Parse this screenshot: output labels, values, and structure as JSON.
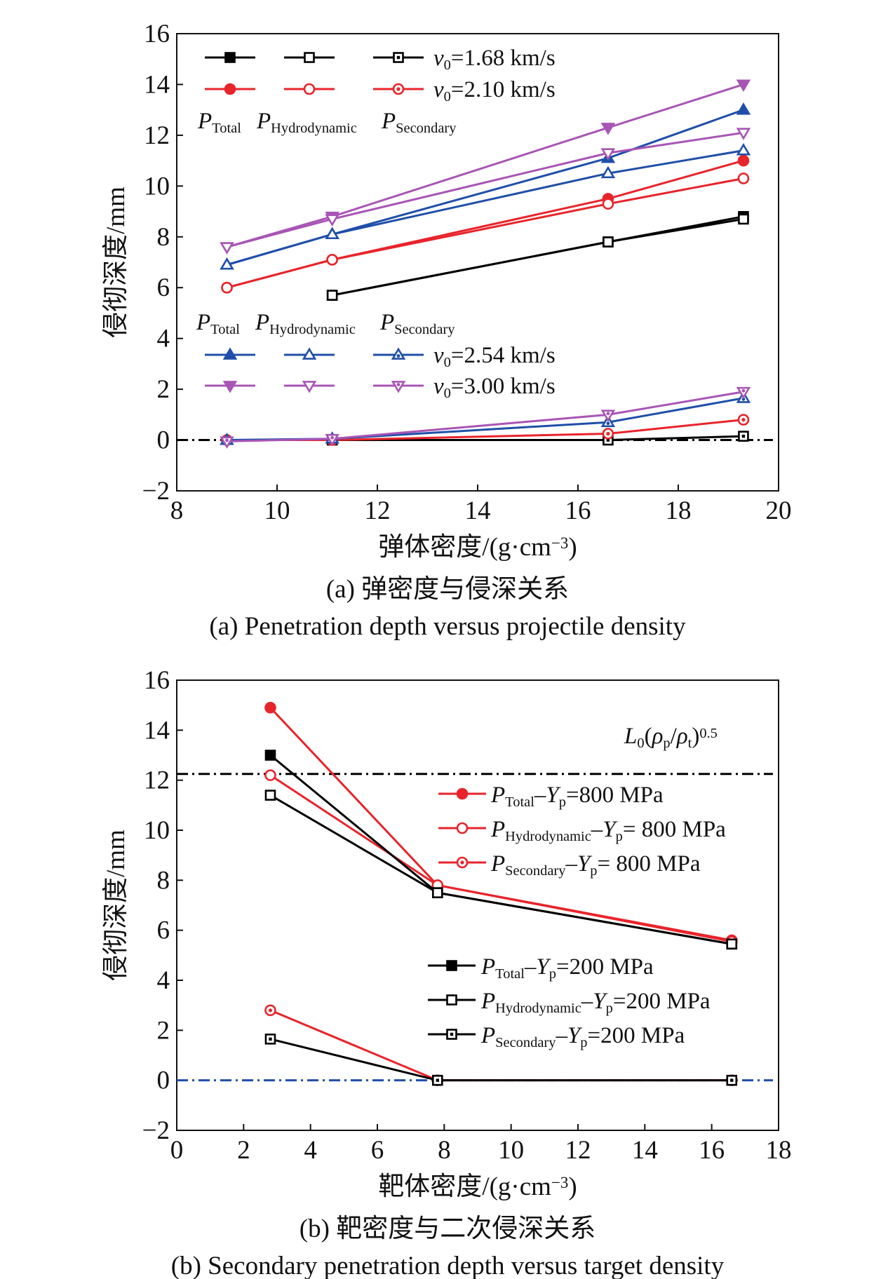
{
  "chart_data": [
    {
      "type": "line",
      "caption_cn": "(a) 弹密度与侵深关系",
      "caption_en": "(a) Penetration depth versus projectile density",
      "xlabel_main": "弹体密度/(g·cm",
      "xlabel_exp": "−3",
      "xlabel_close": ")",
      "ylabel": "侵彻深度/mm",
      "xlim": [
        8,
        20
      ],
      "ylim": [
        -2,
        16
      ],
      "xticks": [
        "8",
        "10",
        "12",
        "14",
        "16",
        "18",
        "20"
      ],
      "yticks": [
        "−2",
        "0",
        "2",
        "4",
        "6",
        "8",
        "10",
        "12",
        "14",
        "16"
      ],
      "zero_line": {
        "y": 0,
        "color": "#000000",
        "style": "dash-dot"
      },
      "legend_top": {
        "col_labels": [
          {
            "main": "P",
            "sub": "Total"
          },
          {
            "main": "P",
            "sub": "Hydrodynamic"
          },
          {
            "main": "P",
            "sub": "Secondary"
          }
        ],
        "row_labels": [
          {
            "main": "v",
            "sub": "0",
            "rest": "=1.68 km/s"
          },
          {
            "main": "v",
            "sub": "0",
            "rest": "=2.10 km/s"
          }
        ]
      },
      "legend_bottom": {
        "col_labels": [
          {
            "main": "P",
            "sub": "Total"
          },
          {
            "main": "P",
            "sub": "Hydrodynamic"
          },
          {
            "main": "P",
            "sub": "Secondary"
          }
        ],
        "row_labels": [
          {
            "main": "v",
            "sub": "0",
            "rest": "=2.54 km/s"
          },
          {
            "main": "v",
            "sub": "0",
            "rest": "=3.00 km/s"
          }
        ]
      },
      "series": [
        {
          "velocity": "1.68",
          "kind": "Total",
          "color": "#000000",
          "marker": "square",
          "style": "filled",
          "x": [
            11.1,
            16.6,
            19.3
          ],
          "y": [
            5.7,
            7.8,
            8.8
          ]
        },
        {
          "velocity": "1.68",
          "kind": "Hydrodynamic",
          "color": "#000000",
          "marker": "square",
          "style": "open",
          "x": [
            11.1,
            16.6,
            19.3
          ],
          "y": [
            5.7,
            7.8,
            8.7
          ]
        },
        {
          "velocity": "1.68",
          "kind": "Secondary",
          "color": "#000000",
          "marker": "square",
          "style": "dot",
          "x": [
            11.1,
            16.6,
            19.3
          ],
          "y": [
            0.0,
            0.0,
            0.15
          ]
        },
        {
          "velocity": "2.10",
          "kind": "Total",
          "color": "#e8242b",
          "marker": "circle",
          "style": "filled",
          "x": [
            9.0,
            11.1,
            16.6,
            19.3
          ],
          "y": [
            6.0,
            7.1,
            9.5,
            11.0
          ]
        },
        {
          "velocity": "2.10",
          "kind": "Hydrodynamic",
          "color": "#e8242b",
          "marker": "circle",
          "style": "open",
          "x": [
            9.0,
            11.1,
            16.6,
            19.3
          ],
          "y": [
            6.0,
            7.1,
            9.3,
            10.3
          ]
        },
        {
          "velocity": "2.10",
          "kind": "Secondary",
          "color": "#e8242b",
          "marker": "circle",
          "style": "dot",
          "x": [
            9.0,
            11.1,
            16.6,
            19.3
          ],
          "y": [
            0.0,
            0.0,
            0.25,
            0.8
          ]
        },
        {
          "velocity": "2.54",
          "kind": "Total",
          "color": "#1f4fa8",
          "marker": "triangle-up",
          "style": "filled",
          "x": [
            9.0,
            11.1,
            16.6,
            19.3
          ],
          "y": [
            6.9,
            8.1,
            11.1,
            13.0
          ]
        },
        {
          "velocity": "2.54",
          "kind": "Hydrodynamic",
          "color": "#1f4fa8",
          "marker": "triangle-up",
          "style": "open",
          "x": [
            9.0,
            11.1,
            16.6,
            19.3
          ],
          "y": [
            6.9,
            8.1,
            10.5,
            11.4
          ]
        },
        {
          "velocity": "2.54",
          "kind": "Secondary",
          "color": "#1f4fa8",
          "marker": "triangle-up",
          "style": "dot",
          "x": [
            9.0,
            11.1,
            16.6,
            19.3
          ],
          "y": [
            0.0,
            0.05,
            0.7,
            1.65
          ]
        },
        {
          "velocity": "3.00",
          "kind": "Total",
          "color": "#a855b5",
          "marker": "triangle-down",
          "style": "filled",
          "x": [
            9.0,
            11.1,
            16.6,
            19.3
          ],
          "y": [
            7.6,
            8.8,
            12.3,
            14.0
          ]
        },
        {
          "velocity": "3.00",
          "kind": "Hydrodynamic",
          "color": "#a855b5",
          "marker": "triangle-down",
          "style": "open",
          "x": [
            9.0,
            11.1,
            16.6,
            19.3
          ],
          "y": [
            7.6,
            8.7,
            11.3,
            12.1
          ]
        },
        {
          "velocity": "3.00",
          "kind": "Secondary",
          "color": "#a855b5",
          "marker": "triangle-down",
          "style": "dot",
          "x": [
            9.0,
            11.1,
            16.6,
            19.3
          ],
          "y": [
            -0.05,
            0.05,
            1.0,
            1.9
          ]
        }
      ]
    },
    {
      "type": "line",
      "caption_cn": "(b) 靶密度与二次侵深关系",
      "caption_en": "(b) Secondary penetration depth versus target density",
      "xlabel_main": "靶体密度/(g·cm",
      "xlabel_exp": "−3",
      "xlabel_close": ")",
      "ylabel": "侵彻深度/mm",
      "xlim": [
        0,
        18
      ],
      "ylim": [
        -2,
        16
      ],
      "xticks": [
        "0",
        "2",
        "4",
        "6",
        "8",
        "10",
        "12",
        "14",
        "16",
        "18"
      ],
      "yticks": [
        "−2",
        "0",
        "2",
        "4",
        "6",
        "8",
        "10",
        "12",
        "14",
        "16"
      ],
      "reference_line": {
        "y": 12.25,
        "color": "#000000",
        "style": "dash-dot"
      },
      "zero_line": {
        "y": 0,
        "color": "#1f4fa8",
        "style": "dash-dot"
      },
      "reference_label": {
        "L": "L",
        "Lsub": "0",
        "open": "(",
        "rho1": "ρ",
        "rho1sub": "p",
        "slash": "/",
        "rho2": "ρ",
        "rho2sub": "t",
        "close": ")",
        "exp": "0.5"
      },
      "legend_red": [
        {
          "main": "P",
          "sub": "Total",
          "mid": "–Y",
          "msub": "p",
          "rest": "=800 MPa"
        },
        {
          "main": "P",
          "sub": "Hydrodynamic",
          "mid": "–Y",
          "msub": "p",
          "rest": "= 800 MPa"
        },
        {
          "main": "P",
          "sub": "Secondary",
          "mid": "–Y",
          "msub": "p",
          "rest": "= 800 MPa"
        }
      ],
      "legend_black": [
        {
          "main": "P",
          "sub": "Total",
          "mid": "–Y",
          "msub": "p",
          "rest": "=200 MPa"
        },
        {
          "main": "P",
          "sub": "Hydrodynamic",
          "mid": "–Y",
          "msub": "p",
          "rest": "=200 MPa"
        },
        {
          "main": "P",
          "sub": "Secondary",
          "mid": "–Y",
          "msub": "p",
          "rest": "=200 MPa"
        }
      ],
      "series": [
        {
          "name": "P_Total–Y_p=800 MPa",
          "color": "#e8242b",
          "marker": "circle",
          "style": "filled",
          "x": [
            2.8,
            7.8,
            16.6
          ],
          "y": [
            14.9,
            7.8,
            5.6
          ]
        },
        {
          "name": "P_Hydrodynamic–Y_p=800 MPa",
          "color": "#e8242b",
          "marker": "circle",
          "style": "open",
          "x": [
            2.8,
            7.8,
            16.6
          ],
          "y": [
            12.2,
            7.8,
            5.55
          ]
        },
        {
          "name": "P_Secondary–Y_p=800 MPa",
          "color": "#e8242b",
          "marker": "circle",
          "style": "dot",
          "x": [
            2.8,
            7.8,
            16.6
          ],
          "y": [
            2.8,
            0.0,
            0.0
          ]
        },
        {
          "name": "P_Total–Y_p=200 MPa",
          "color": "#000000",
          "marker": "square",
          "style": "filled",
          "x": [
            2.8,
            7.8,
            16.6
          ],
          "y": [
            13.0,
            7.5,
            5.45
          ]
        },
        {
          "name": "P_Hydrodynamic–Y_p=200 MPa",
          "color": "#000000",
          "marker": "square",
          "style": "open",
          "x": [
            2.8,
            7.8,
            16.6
          ],
          "y": [
            11.4,
            7.5,
            5.45
          ]
        },
        {
          "name": "P_Secondary–Y_p=200 MPa",
          "color": "#000000",
          "marker": "square",
          "style": "dot",
          "x": [
            2.8,
            7.8,
            16.6
          ],
          "y": [
            1.65,
            0.0,
            0.0
          ]
        }
      ]
    }
  ]
}
